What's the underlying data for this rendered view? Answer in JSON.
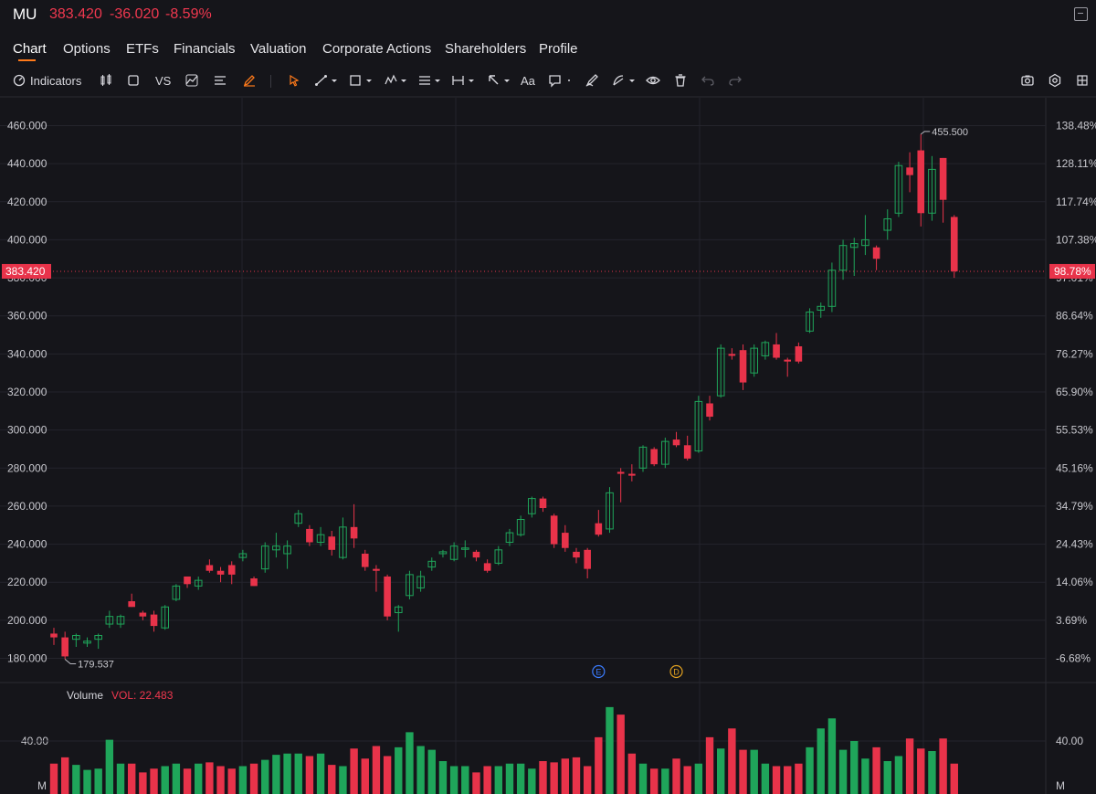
{
  "header": {
    "symbol": "MU",
    "price": "383.420",
    "change": "-36.020",
    "change_pct": "-8.59%"
  },
  "tabs": [
    {
      "label": "Chart",
      "active": true
    },
    {
      "label": "Options",
      "active": false
    },
    {
      "label": "ETFs",
      "active": false
    },
    {
      "label": "Financials",
      "active": false
    },
    {
      "label": "Valuation",
      "active": false
    },
    {
      "label": "Corporate Actions",
      "active": false
    },
    {
      "label": "Shareholders",
      "active": false
    },
    {
      "label": "Profile",
      "active": false
    }
  ],
  "toolbar": {
    "indicators_label": "Indicators",
    "vs_label": "VS",
    "text_label": "Aa",
    "icons": [
      "candle-type-icon",
      "rectangle-icon",
      "compare-icon",
      "area-icon",
      "lines-icon",
      "brush-icon",
      "cursor-icon",
      "trend-line-icon",
      "shape-icon",
      "pattern-icon",
      "fib-icon",
      "measure-icon",
      "arrow-icon",
      "text-icon",
      "comment-icon",
      "pencil-icon",
      "gann-icon",
      "eye-icon",
      "trash-icon",
      "undo-icon",
      "redo-icon",
      "camera-icon",
      "settings-icon"
    ]
  },
  "colors": {
    "up": "#1fa55a",
    "down": "#e8334a",
    "accent": "#ff7a1a",
    "background": "#15151a",
    "grid": "#24242c"
  },
  "chart_data": {
    "type": "candlestick",
    "price_axis_ticks": [
      "460.000",
      "440.000",
      "420.000",
      "400.000",
      "380.000",
      "360.000",
      "340.000",
      "320.000",
      "300.000",
      "280.000",
      "260.000",
      "240.000",
      "220.000",
      "200.000",
      "180.000"
    ],
    "pct_axis_ticks": [
      "138.48%",
      "128.11%",
      "117.74%",
      "107.38%",
      "97.01%",
      "86.64%",
      "76.27%",
      "65.90%",
      "55.53%",
      "45.16%",
      "34.79%",
      "24.43%",
      "14.06%",
      "3.69%",
      "-6.68%"
    ],
    "ylim": [
      175,
      465
    ],
    "last_price_label": "383.420",
    "last_pct_label": "98.78%",
    "last_price": 383.42,
    "high_label": "455.500",
    "low_label": "179.537",
    "high": 455.5,
    "low": 179.537,
    "event_markers": [
      {
        "label": "E",
        "candle_index": 49
      },
      {
        "label": "D",
        "candle_index": 56
      }
    ],
    "candles": [
      {
        "o": 193,
        "h": 196,
        "l": 187,
        "c": 191
      },
      {
        "o": 191,
        "h": 194,
        "l": 179.537,
        "c": 181
      },
      {
        "o": 190,
        "h": 193,
        "l": 186,
        "c": 192
      },
      {
        "o": 188,
        "h": 191,
        "l": 186,
        "c": 189
      },
      {
        "o": 190,
        "h": 193,
        "l": 185,
        "c": 192
      },
      {
        "o": 198,
        "h": 205,
        "l": 196,
        "c": 202
      },
      {
        "o": 198,
        "h": 203,
        "l": 196,
        "c": 202
      },
      {
        "o": 210,
        "h": 214,
        "l": 207,
        "c": 207
      },
      {
        "o": 204,
        "h": 205,
        "l": 200,
        "c": 202
      },
      {
        "o": 203,
        "h": 205,
        "l": 194,
        "c": 197
      },
      {
        "o": 196,
        "h": 208,
        "l": 195,
        "c": 207
      },
      {
        "o": 211,
        "h": 219,
        "l": 210,
        "c": 218
      },
      {
        "o": 223,
        "h": 223,
        "l": 217,
        "c": 219
      },
      {
        "o": 218,
        "h": 223,
        "l": 216,
        "c": 221
      },
      {
        "o": 229,
        "h": 232,
        "l": 225,
        "c": 226
      },
      {
        "o": 226,
        "h": 228,
        "l": 220,
        "c": 224
      },
      {
        "o": 229,
        "h": 231,
        "l": 219,
        "c": 224
      },
      {
        "o": 233,
        "h": 237,
        "l": 231,
        "c": 235
      },
      {
        "o": 222,
        "h": 223,
        "l": 218,
        "c": 218
      },
      {
        "o": 227,
        "h": 241,
        "l": 225,
        "c": 239
      },
      {
        "o": 237,
        "h": 246,
        "l": 233,
        "c": 239
      },
      {
        "o": 235,
        "h": 242,
        "l": 227,
        "c": 239
      },
      {
        "o": 251,
        "h": 258,
        "l": 249,
        "c": 256
      },
      {
        "o": 248,
        "h": 250,
        "l": 239,
        "c": 241
      },
      {
        "o": 241,
        "h": 249,
        "l": 239,
        "c": 245
      },
      {
        "o": 244,
        "h": 247,
        "l": 234,
        "c": 237
      },
      {
        "o": 233,
        "h": 254,
        "l": 232,
        "c": 249
      },
      {
        "o": 249,
        "h": 261,
        "l": 238,
        "c": 243
      },
      {
        "o": 235,
        "h": 237,
        "l": 226,
        "c": 228
      },
      {
        "o": 227,
        "h": 229,
        "l": 215,
        "c": 226
      },
      {
        "o": 223,
        "h": 224,
        "l": 200,
        "c": 202
      },
      {
        "o": 204,
        "h": 208,
        "l": 194,
        "c": 207
      },
      {
        "o": 213,
        "h": 226,
        "l": 211,
        "c": 224
      },
      {
        "o": 217,
        "h": 226,
        "l": 215,
        "c": 223
      },
      {
        "o": 228,
        "h": 233,
        "l": 226,
        "c": 231
      },
      {
        "o": 235,
        "h": 237,
        "l": 233,
        "c": 236
      },
      {
        "o": 232,
        "h": 241,
        "l": 231,
        "c": 239
      },
      {
        "o": 238,
        "h": 242,
        "l": 233,
        "c": 238
      },
      {
        "o": 236,
        "h": 237,
        "l": 231,
        "c": 233
      },
      {
        "o": 230,
        "h": 232,
        "l": 225,
        "c": 226
      },
      {
        "o": 230,
        "h": 239,
        "l": 229,
        "c": 237
      },
      {
        "o": 241,
        "h": 248,
        "l": 239,
        "c": 246
      },
      {
        "o": 245,
        "h": 255,
        "l": 244,
        "c": 253
      },
      {
        "o": 256,
        "h": 265,
        "l": 254,
        "c": 264
      },
      {
        "o": 264,
        "h": 265,
        "l": 257,
        "c": 259
      },
      {
        "o": 255,
        "h": 256,
        "l": 238,
        "c": 240
      },
      {
        "o": 246,
        "h": 250,
        "l": 236,
        "c": 238
      },
      {
        "o": 236,
        "h": 238,
        "l": 230,
        "c": 233
      },
      {
        "o": 237,
        "h": 238,
        "l": 222,
        "c": 227
      },
      {
        "o": 251,
        "h": 258,
        "l": 244,
        "c": 245
      },
      {
        "o": 248,
        "h": 270,
        "l": 246,
        "c": 267
      },
      {
        "o": 278,
        "h": 280,
        "l": 262,
        "c": 277
      },
      {
        "o": 277,
        "h": 282,
        "l": 273,
        "c": 276
      },
      {
        "o": 280,
        "h": 292,
        "l": 278,
        "c": 291
      },
      {
        "o": 290,
        "h": 291,
        "l": 281,
        "c": 282
      },
      {
        "o": 282,
        "h": 296,
        "l": 280,
        "c": 294
      },
      {
        "o": 295,
        "h": 299,
        "l": 291,
        "c": 292
      },
      {
        "o": 292,
        "h": 297,
        "l": 284,
        "c": 285
      },
      {
        "o": 289,
        "h": 318,
        "l": 288,
        "c": 315
      },
      {
        "o": 314,
        "h": 318,
        "l": 305,
        "c": 307
      },
      {
        "o": 318,
        "h": 345,
        "l": 317,
        "c": 343
      },
      {
        "o": 340,
        "h": 343,
        "l": 337,
        "c": 339
      },
      {
        "o": 342,
        "h": 345,
        "l": 321,
        "c": 325
      },
      {
        "o": 330,
        "h": 345,
        "l": 328,
        "c": 343
      },
      {
        "o": 339,
        "h": 347,
        "l": 337,
        "c": 346
      },
      {
        "o": 345,
        "h": 351,
        "l": 337,
        "c": 338
      },
      {
        "o": 337,
        "h": 338,
        "l": 328,
        "c": 336
      },
      {
        "o": 344,
        "h": 346,
        "l": 335,
        "c": 336
      },
      {
        "o": 352,
        "h": 364,
        "l": 351,
        "c": 362
      },
      {
        "o": 363,
        "h": 367,
        "l": 359,
        "c": 365
      },
      {
        "o": 365,
        "h": 388,
        "l": 362,
        "c": 384
      },
      {
        "o": 384,
        "h": 400,
        "l": 379,
        "c": 397
      },
      {
        "o": 396,
        "h": 401,
        "l": 381,
        "c": 398
      },
      {
        "o": 397,
        "h": 413,
        "l": 392,
        "c": 400
      },
      {
        "o": 396,
        "h": 397,
        "l": 384,
        "c": 390
      },
      {
        "o": 405,
        "h": 416,
        "l": 400,
        "c": 411
      },
      {
        "o": 414,
        "h": 441,
        "l": 412,
        "c": 439
      },
      {
        "o": 438,
        "h": 446,
        "l": 425,
        "c": 434
      },
      {
        "o": 447,
        "h": 455.5,
        "l": 407,
        "c": 414
      },
      {
        "o": 414,
        "h": 444,
        "l": 410,
        "c": 437
      },
      {
        "o": 443,
        "h": 443,
        "l": 409,
        "c": 421
      },
      {
        "o": 412,
        "h": 413,
        "l": 380,
        "c": 383.42
      }
    ],
    "volume": {
      "label": "Volume",
      "value_label": "VOL: 22.483",
      "axis_ticks": [
        "40.00",
        "M"
      ],
      "ylim": [
        0,
        80
      ],
      "values": [
        22,
        27,
        21,
        17,
        18,
        41,
        22,
        22,
        15,
        18,
        20,
        22,
        18,
        22,
        23,
        20,
        18,
        20,
        22,
        25,
        29,
        30,
        30,
        28,
        30,
        21,
        20,
        34,
        26,
        36,
        28,
        35,
        47,
        36,
        33,
        24,
        20,
        20,
        15,
        20,
        20,
        22,
        22,
        18,
        24,
        23,
        26,
        27,
        20,
        43,
        67,
        61,
        30,
        22,
        18,
        18,
        26,
        20,
        22,
        43,
        34,
        50,
        33,
        33,
        22,
        20,
        20,
        22,
        35,
        50,
        58,
        33,
        40,
        26,
        35,
        24,
        28,
        42,
        34,
        32,
        42,
        22
      ]
    }
  }
}
